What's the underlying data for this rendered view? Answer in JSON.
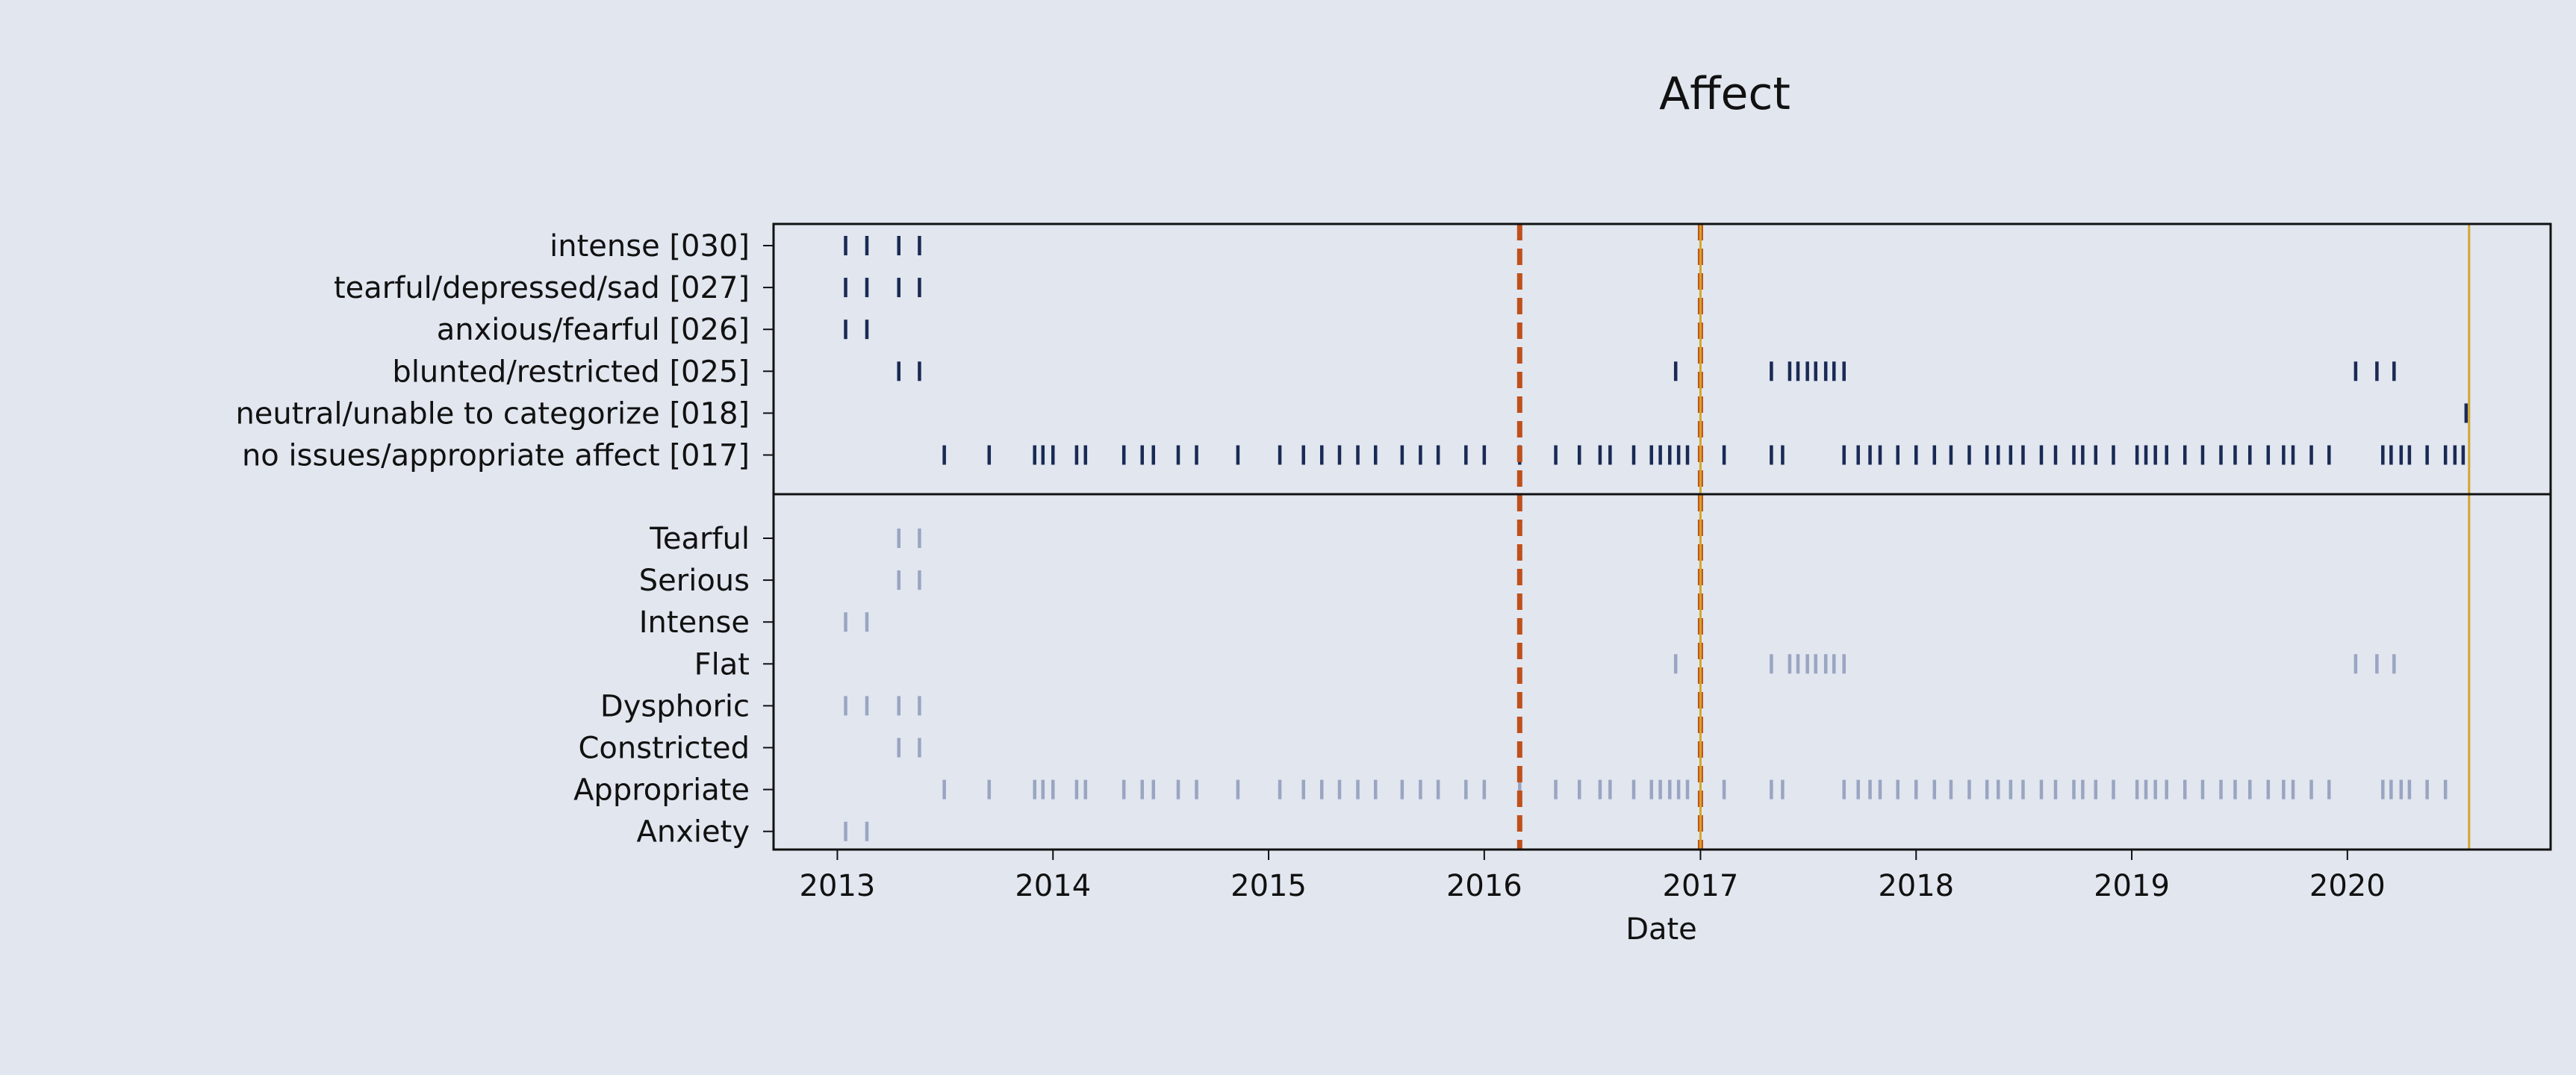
{
  "chart_data": {
    "type": "event-raster",
    "title": "Affect",
    "xlabel": "Date",
    "ylabel": "",
    "xlim": [
      "2012-09-15",
      "2020-12-10"
    ],
    "x_ticks": [
      "2013",
      "2014",
      "2015",
      "2016",
      "2017",
      "2018",
      "2019",
      "2020"
    ],
    "grid": false,
    "legend": "none",
    "colors": {
      "background": "#e1e6ef",
      "dark_ticks": "#1a2a55",
      "light_ticks": "#9aa5c2",
      "dashed_lines": "#c0501a",
      "solid_line": "#d4a52a",
      "axes": "#111111"
    },
    "vertical_lines": [
      {
        "date": "2016-03-01",
        "style": "dashed",
        "color": "#c0501a"
      },
      {
        "date": "2017-01-01",
        "style": "dashed",
        "color": "#c0501a"
      },
      {
        "date": "2017-01-01",
        "style": "solid",
        "color": "#d4a52a"
      },
      {
        "date": "2020-07-25",
        "style": "solid",
        "color": "#d4a52a"
      }
    ],
    "panels": [
      {
        "name": "codes",
        "rows": [
          {
            "label": "intense [030]",
            "dates": [
              "2013-01-15",
              "2013-02-20",
              "2013-04-15",
              "2013-05-20"
            ]
          },
          {
            "label": "tearful/depressed/sad [027]",
            "dates": [
              "2013-01-15",
              "2013-02-20",
              "2013-04-15",
              "2013-05-20"
            ]
          },
          {
            "label": "anxious/fearful [026]",
            "dates": [
              "2013-01-15",
              "2013-02-20"
            ]
          },
          {
            "label": "blunted/restricted [025]",
            "dates": [
              "2013-04-15",
              "2013-05-20",
              "2016-11-20",
              "2017-05-01",
              "2017-06-01",
              "2017-06-15",
              "2017-07-01",
              "2017-07-15",
              "2017-08-01",
              "2017-08-15",
              "2017-09-01",
              "2020-01-15",
              "2020-02-20",
              "2020-03-20"
            ]
          },
          {
            "label": "neutral/unable to categorize [018]",
            "dates": [
              "2020-07-20"
            ]
          },
          {
            "label": "no issues/appropriate affect [017]",
            "dates": [
              "2013-07-01",
              "2013-09-15",
              "2013-12-01",
              "2013-12-15",
              "2014-01-01",
              "2014-02-10",
              "2014-02-25",
              "2014-05-01",
              "2014-06-01",
              "2014-06-20",
              "2014-08-01",
              "2014-09-01",
              "2014-11-10",
              "2015-01-20",
              "2015-03-01",
              "2015-04-01",
              "2015-05-01",
              "2015-06-01",
              "2015-07-01",
              "2015-08-15",
              "2015-09-15",
              "2015-10-15",
              "2015-12-01",
              "2016-01-01",
              "2016-03-01",
              "2016-05-01",
              "2016-06-10",
              "2016-07-15",
              "2016-08-01",
              "2016-09-10",
              "2016-10-10",
              "2016-10-25",
              "2016-11-10",
              "2016-11-25",
              "2016-12-10",
              "2017-02-10",
              "2017-05-01",
              "2017-05-20",
              "2017-09-01",
              "2017-09-25",
              "2017-10-15",
              "2017-11-01",
              "2017-12-01",
              "2018-01-01",
              "2018-02-01",
              "2018-03-01",
              "2018-04-01",
              "2018-05-01",
              "2018-05-20",
              "2018-06-10",
              "2018-07-01",
              "2018-08-01",
              "2018-08-25",
              "2018-09-25",
              "2018-10-10",
              "2018-11-01",
              "2018-12-01",
              "2019-01-10",
              "2019-01-25",
              "2019-02-10",
              "2019-03-01",
              "2019-04-01",
              "2019-05-01",
              "2019-06-01",
              "2019-06-25",
              "2019-07-20",
              "2019-08-20",
              "2019-09-15",
              "2019-10-01",
              "2019-11-01",
              "2019-12-01",
              "2020-03-01",
              "2020-03-15",
              "2020-04-01",
              "2020-04-15",
              "2020-05-15",
              "2020-06-15",
              "2020-07-01",
              "2020-07-15"
            ]
          }
        ]
      },
      {
        "name": "descriptors",
        "rows": [
          {
            "label": "Tearful",
            "dates": [
              "2013-04-15",
              "2013-05-20"
            ]
          },
          {
            "label": "Serious",
            "dates": [
              "2013-04-15",
              "2013-05-20"
            ]
          },
          {
            "label": "Intense",
            "dates": [
              "2013-01-15",
              "2013-02-20"
            ]
          },
          {
            "label": "Flat",
            "dates": [
              "2016-11-20",
              "2017-05-01",
              "2017-06-01",
              "2017-06-15",
              "2017-07-01",
              "2017-07-15",
              "2017-08-01",
              "2017-08-15",
              "2017-09-01",
              "2020-01-15",
              "2020-02-20",
              "2020-03-20"
            ]
          },
          {
            "label": "Dysphoric",
            "dates": [
              "2013-01-15",
              "2013-02-20",
              "2013-04-15",
              "2013-05-20"
            ]
          },
          {
            "label": "Constricted",
            "dates": [
              "2013-04-15",
              "2013-05-20"
            ]
          },
          {
            "label": "Appropriate",
            "dates": [
              "2013-07-01",
              "2013-09-15",
              "2013-12-01",
              "2013-12-15",
              "2014-01-01",
              "2014-02-10",
              "2014-02-25",
              "2014-05-01",
              "2014-06-01",
              "2014-06-20",
              "2014-08-01",
              "2014-09-01",
              "2014-11-10",
              "2015-01-20",
              "2015-03-01",
              "2015-04-01",
              "2015-05-01",
              "2015-06-01",
              "2015-07-01",
              "2015-08-15",
              "2015-09-15",
              "2015-10-15",
              "2015-12-01",
              "2016-01-01",
              "2016-03-01",
              "2016-05-01",
              "2016-06-10",
              "2016-07-15",
              "2016-08-01",
              "2016-09-10",
              "2016-10-10",
              "2016-10-25",
              "2016-11-10",
              "2016-11-25",
              "2016-12-10",
              "2017-02-10",
              "2017-05-01",
              "2017-05-20",
              "2017-09-01",
              "2017-09-25",
              "2017-10-15",
              "2017-11-01",
              "2017-12-01",
              "2018-01-01",
              "2018-02-01",
              "2018-03-01",
              "2018-04-01",
              "2018-05-01",
              "2018-05-20",
              "2018-06-10",
              "2018-07-01",
              "2018-08-01",
              "2018-08-25",
              "2018-09-25",
              "2018-10-10",
              "2018-11-01",
              "2018-12-01",
              "2019-01-10",
              "2019-01-25",
              "2019-02-10",
              "2019-03-01",
              "2019-04-01",
              "2019-05-01",
              "2019-06-01",
              "2019-06-25",
              "2019-07-20",
              "2019-08-20",
              "2019-09-15",
              "2019-10-01",
              "2019-11-01",
              "2019-12-01",
              "2020-03-01",
              "2020-03-15",
              "2020-04-01",
              "2020-04-15",
              "2020-05-15",
              "2020-06-15"
            ]
          },
          {
            "label": "Anxiety",
            "dates": [
              "2013-01-15",
              "2013-02-20"
            ]
          }
        ]
      }
    ]
  }
}
